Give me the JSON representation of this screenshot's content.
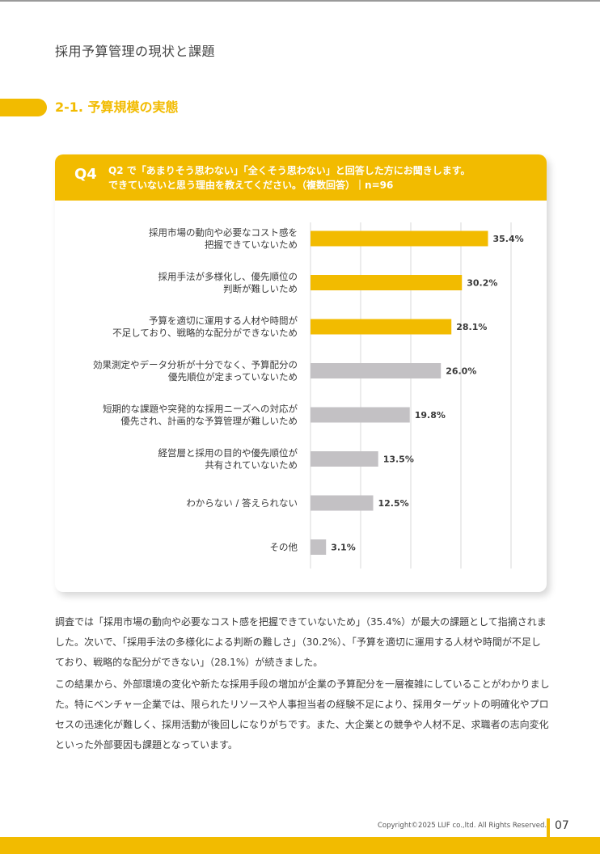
{
  "header": {
    "title": "採用予算管理の現状と課題"
  },
  "section": {
    "title": "2-1. 予算規模の実態"
  },
  "question": {
    "label": "Q4",
    "line1": "Q2 で「あまりそう思わない」「全くそう思わない」と回答した方にお聞きします。",
    "line2": "できていないと思う理由を教えてください。（複数回答）｜n=96"
  },
  "colors": {
    "accent": "#f2bb00",
    "gray_bar": "#c3c1c4",
    "grid": "#d9d9d9"
  },
  "chart_data": {
    "type": "bar",
    "orientation": "horizontal",
    "unit": "%",
    "xlim": [
      0,
      100
    ],
    "categories": [
      [
        "採用市場の動向や必要なコスト感を",
        "把握できていないため"
      ],
      [
        "採用手法が多様化し、優先順位の",
        "判断が難しいため"
      ],
      [
        "予算を適切に運用する人材や時間が",
        "不足しており、戦略的な配分ができないため"
      ],
      [
        "効果測定やデータ分析が十分でなく、予算配分の",
        "優先順位が定まっていないため"
      ],
      [
        "短期的な課題や突発的な採用ニーズへの対応が",
        "優先され、計画的な予算管理が難しいため"
      ],
      [
        "経営層と採用の目的や優先順位が",
        "共有されていないため"
      ],
      [
        "わからない / 答えられない"
      ],
      [
        "その他"
      ]
    ],
    "values": [
      35.4,
      30.2,
      28.1,
      26.0,
      19.8,
      13.5,
      12.5,
      3.1
    ],
    "labels": [
      "35.4%",
      "30.2%",
      "28.1%",
      "26.0%",
      "19.8%",
      "13.5%",
      "12.5%",
      "3.1%"
    ],
    "highlight": [
      true,
      true,
      true,
      false,
      false,
      false,
      false,
      false
    ]
  },
  "body": {
    "p1": "調査では「採用市場の動向や必要なコスト感を把握できていないため」（35.4%）が最大の課題として指摘されました。次いで、「採用手法の多様化による判断の難しさ」（30.2%）、「予算を適切に運用する人材や時間が不足しており、戦略的な配分ができない」（28.1%）が続きました。",
    "p2": "この結果から、外部環境の変化や新たな採用手段の増加が企業の予算配分を一層複雑にしていることがわかりました。特にベンチャー企業では、限られたリソースや人事担当者の経験不足により、採用ターゲットの明確化やプロセスの迅速化が難しく、採用活動が後回しになりがちです。また、大企業との競争や人材不足、求職者の志向変化といった外部要因も課題となっています。"
  },
  "footer": {
    "copyright": "Copyright©2025 LUF co.,ltd. All Rights Reserved.",
    "page": "07"
  }
}
